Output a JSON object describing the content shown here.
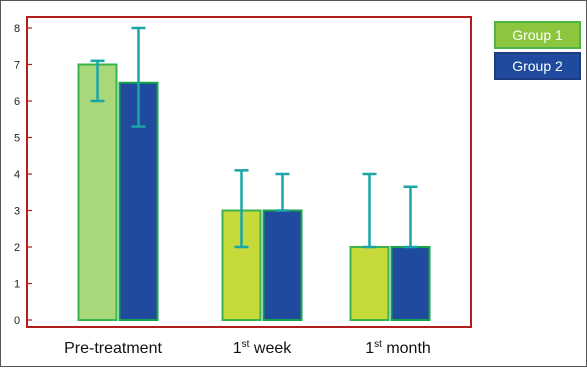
{
  "chart_data": {
    "type": "bar",
    "categories": [
      "Pre-treatment",
      "1st week",
      "1st month"
    ],
    "category_labels": [
      {
        "main": "Pre-treatment",
        "sup": ""
      },
      {
        "main": "1",
        "sup": "st",
        "rest": " week"
      },
      {
        "main": "1",
        "sup": "st",
        "rest": " month"
      }
    ],
    "series": [
      {
        "name": "Group 1",
        "values": [
          7.0,
          3.0,
          2.0
        ],
        "error_upper": [
          7.1,
          4.1,
          4.0
        ],
        "error_lower": [
          6.0,
          2.0,
          2.0
        ],
        "fills": [
          "#a8d87a",
          "#c6da3a",
          "#c6da3a"
        ],
        "stroke": "#3bb34a"
      },
      {
        "name": "Group 2",
        "values": [
          6.5,
          3.0,
          2.0
        ],
        "error_upper": [
          8.0,
          4.0,
          3.65
        ],
        "error_lower": [
          5.3,
          3.0,
          2.0
        ],
        "fills": [
          "#1f4a9e",
          "#1f4a9e",
          "#1f4a9e"
        ],
        "stroke": "#16a34a"
      }
    ],
    "y_ticks": [
      0,
      1,
      2,
      3,
      4,
      5,
      6,
      7,
      8
    ],
    "ylim": [
      0,
      8.2
    ],
    "grid": false,
    "legend_position": "top-right",
    "colors": {
      "frame": "#b01e1e",
      "error_bar": "#1aa6a6",
      "group1": "#8cc63f",
      "group2": "#1f4a9e"
    }
  }
}
